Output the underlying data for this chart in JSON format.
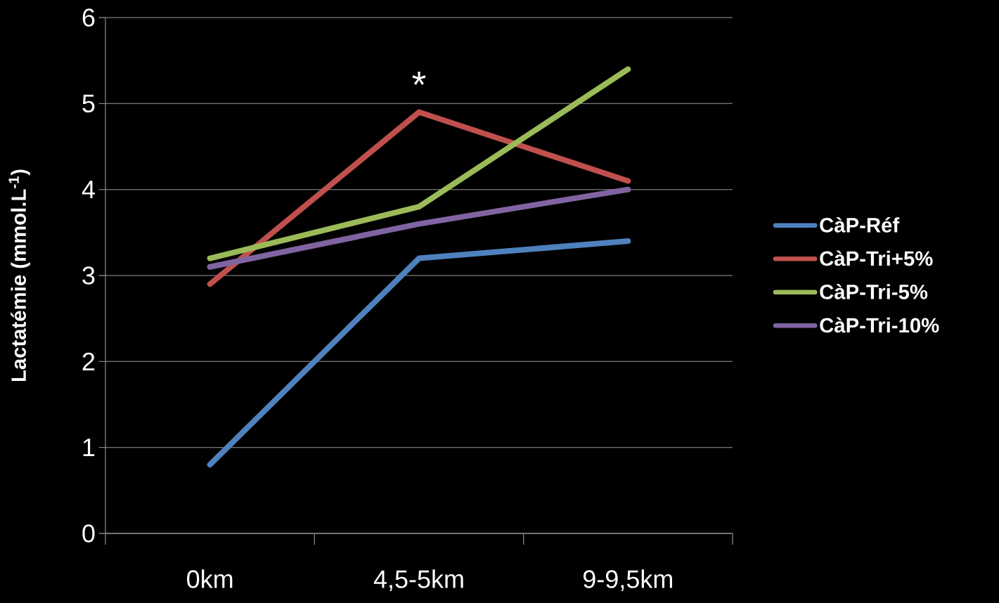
{
  "chart_data": {
    "type": "line",
    "ylabel": "Lactatémie (mmol.L$^{-1}$)",
    "categories": [
      "0km",
      "4,5-5km",
      "9-9,5km"
    ],
    "series": [
      {
        "name": "CàP-Réf",
        "color": "#4f81bd",
        "values": [
          0.8,
          3.2,
          3.4
        ]
      },
      {
        "name": "CàP-Tri+5%",
        "color": "#c0504d",
        "values": [
          2.9,
          4.9,
          4.1
        ]
      },
      {
        "name": "CàP-Tri-5%",
        "color": "#9bbb59",
        "values": [
          3.2,
          3.8,
          5.4
        ]
      },
      {
        "name": "CàP-Tri-10%",
        "color": "#8064a2",
        "values": [
          3.1,
          3.6,
          4.0
        ]
      }
    ],
    "ylim": [
      0,
      6
    ],
    "yticks": [
      0,
      1,
      2,
      3,
      4,
      5,
      6
    ],
    "grid": "y",
    "legend": "right",
    "marker": "none",
    "line_style": "solid",
    "annotations": [
      "*"
    ]
  }
}
